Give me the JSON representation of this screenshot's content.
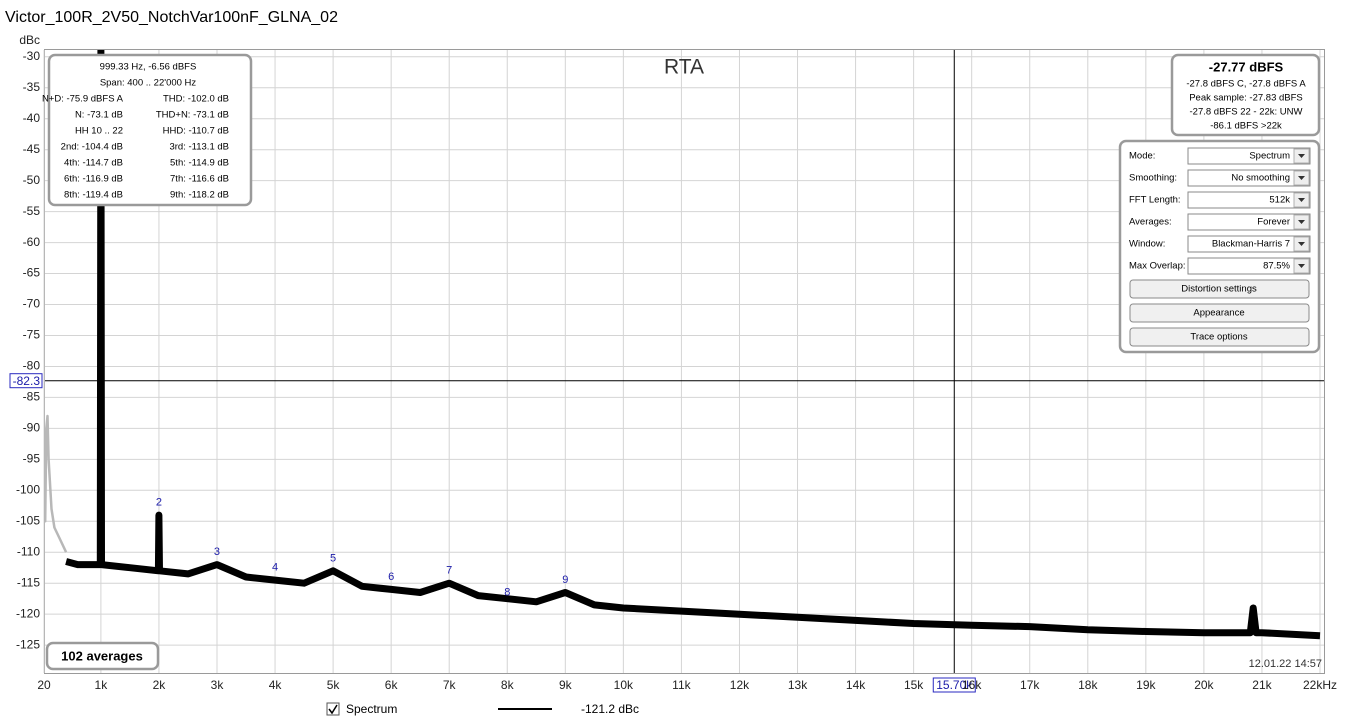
{
  "window_title": "Victor_100R_2V50_NotchVar100nF_GLNA_02",
  "chart_data": {
    "type": "line",
    "title": "RTA",
    "y_label": "dBc",
    "xlim": [
      20,
      22000
    ],
    "ylim": [
      -129.5,
      -28.9
    ],
    "xticks": [
      20,
      {
        "value": 1000,
        "label": "1k"
      },
      {
        "value": 2000,
        "label": "2k"
      },
      {
        "value": 3000,
        "label": "3k"
      },
      {
        "value": 4000,
        "label": "4k"
      },
      {
        "value": 5000,
        "label": "5k"
      },
      {
        "value": 6000,
        "label": "6k"
      },
      {
        "value": 7000,
        "label": "7k"
      },
      {
        "value": 8000,
        "label": "8k"
      },
      {
        "value": 9000,
        "label": "9k"
      },
      {
        "value": 10000,
        "label": "10k"
      },
      {
        "value": 11000,
        "label": "11k"
      },
      {
        "value": 12000,
        "label": "12k"
      },
      {
        "value": 13000,
        "label": "13k"
      },
      {
        "value": 14000,
        "label": "14k"
      },
      {
        "value": 15000,
        "label": "15k"
      },
      {
        "value": 16000,
        "label": "16k"
      },
      {
        "value": 17000,
        "label": "17k"
      },
      {
        "value": 18000,
        "label": "18k"
      },
      {
        "value": 19000,
        "label": "19k"
      },
      {
        "value": 20000,
        "label": "20k"
      },
      {
        "value": 21000,
        "label": "21k"
      },
      {
        "value": 22000,
        "label": "22kHz"
      }
    ],
    "yticks": [
      -30,
      -35,
      -40,
      -45,
      -50,
      -55,
      -60,
      -65,
      -70,
      -75,
      -80,
      -85,
      -90,
      -95,
      -100,
      -105,
      -110,
      -115,
      -120,
      -125
    ],
    "grid": true,
    "series": [
      {
        "name": "Spectrum",
        "color": "#000000",
        "x": [
          400,
          600,
          990,
          1000,
          1010,
          1500,
          1990,
          2000,
          2010,
          2500,
          3000,
          3500,
          4000,
          4500,
          5000,
          5500,
          6000,
          6500,
          7000,
          7500,
          8000,
          8500,
          9000,
          9500,
          10000,
          11000,
          12000,
          13000,
          14000,
          15000,
          16000,
          17000,
          18000,
          19000,
          20000,
          20800,
          20850,
          20900,
          21000,
          22000
        ],
        "values": [
          -111.5,
          -112,
          -112,
          -29,
          -112,
          -112.5,
          -113,
          -104,
          -113,
          -113.5,
          -112,
          -114,
          -114.5,
          -115,
          -113,
          -115.5,
          -116,
          -116.5,
          -115,
          -117,
          -117.5,
          -118,
          -116.5,
          -118.5,
          -119,
          -119.5,
          -120,
          -120.5,
          -121,
          -121.5,
          -121.8,
          -122,
          -122.5,
          -122.8,
          -123,
          -123,
          -119,
          -123,
          -123,
          -123.5
        ]
      },
      {
        "color": "#b8b8b8",
        "x": [
          20,
          40,
          60,
          80,
          100,
          150,
          200,
          300,
          400
        ],
        "values": [
          -100,
          -105,
          -90,
          -88,
          -95,
          -103,
          -106,
          -108,
          -110
        ]
      }
    ],
    "annotations": [
      {
        "text": "2",
        "x": 2000,
        "y": -102
      },
      {
        "text": "3",
        "x": 3000,
        "y": -110
      },
      {
        "text": "4",
        "x": 4000,
        "y": -112.5
      },
      {
        "text": "5",
        "x": 5000,
        "y": -111
      },
      {
        "text": "6",
        "x": 6000,
        "y": -114
      },
      {
        "text": "7",
        "x": 7000,
        "y": -113
      },
      {
        "text": "8",
        "x": 8000,
        "y": -116.5
      },
      {
        "text": "9",
        "x": 9000,
        "y": -114.5
      }
    ],
    "cursor": {
      "x": {
        "value": 15700,
        "label": "15.70k"
      },
      "y": -82.3
    },
    "timestamp": "12.01.22 14:57",
    "averages": "102 averages",
    "legend_value": "-121.2 dBc"
  },
  "info_box": {
    "lines": [
      "999.33 Hz, -6.56 dBFS",
      "Span: 400 .. 22'000 Hz"
    ],
    "pairs": [
      [
        "N+D: -75.9 dBFS A",
        "THD: -102.0 dB"
      ],
      [
        "N: -73.1 dB",
        "THD+N: -73.1 dB"
      ],
      [
        "HH 10 .. 22",
        "HHD: -110.7 dB"
      ],
      [
        "2nd: -104.4 dB",
        "3rd: -113.1 dB"
      ],
      [
        "4th: -114.7 dB",
        "5th: -114.9 dB"
      ],
      [
        "6th: -116.9 dB",
        "7th: -116.6 dB"
      ],
      [
        "8th: -119.4 dB",
        "9th: -118.2 dB"
      ]
    ]
  },
  "level_box": {
    "title": "-27.77 dBFS",
    "lines": [
      "-27.8 dBFS C, -27.8 dBFS A",
      "Peak sample: -27.83 dBFS",
      "-27.8 dBFS 22 - 22k: UNW",
      "-86.1 dBFS >22k"
    ]
  },
  "controls": {
    "settings": [
      {
        "label": "Mode:",
        "value": "Spectrum"
      },
      {
        "label": "Smoothing:",
        "value": "No  smoothing"
      },
      {
        "label": "FFT Length:",
        "value": "512k"
      },
      {
        "label": "Averages:",
        "value": "Forever"
      },
      {
        "label": "Window:",
        "value": "Blackman-Harris 7"
      },
      {
        "label": "Max Overlap:",
        "value": "87.5%"
      }
    ],
    "buttons": [
      "Distortion settings",
      "Appearance",
      "Trace options"
    ]
  }
}
